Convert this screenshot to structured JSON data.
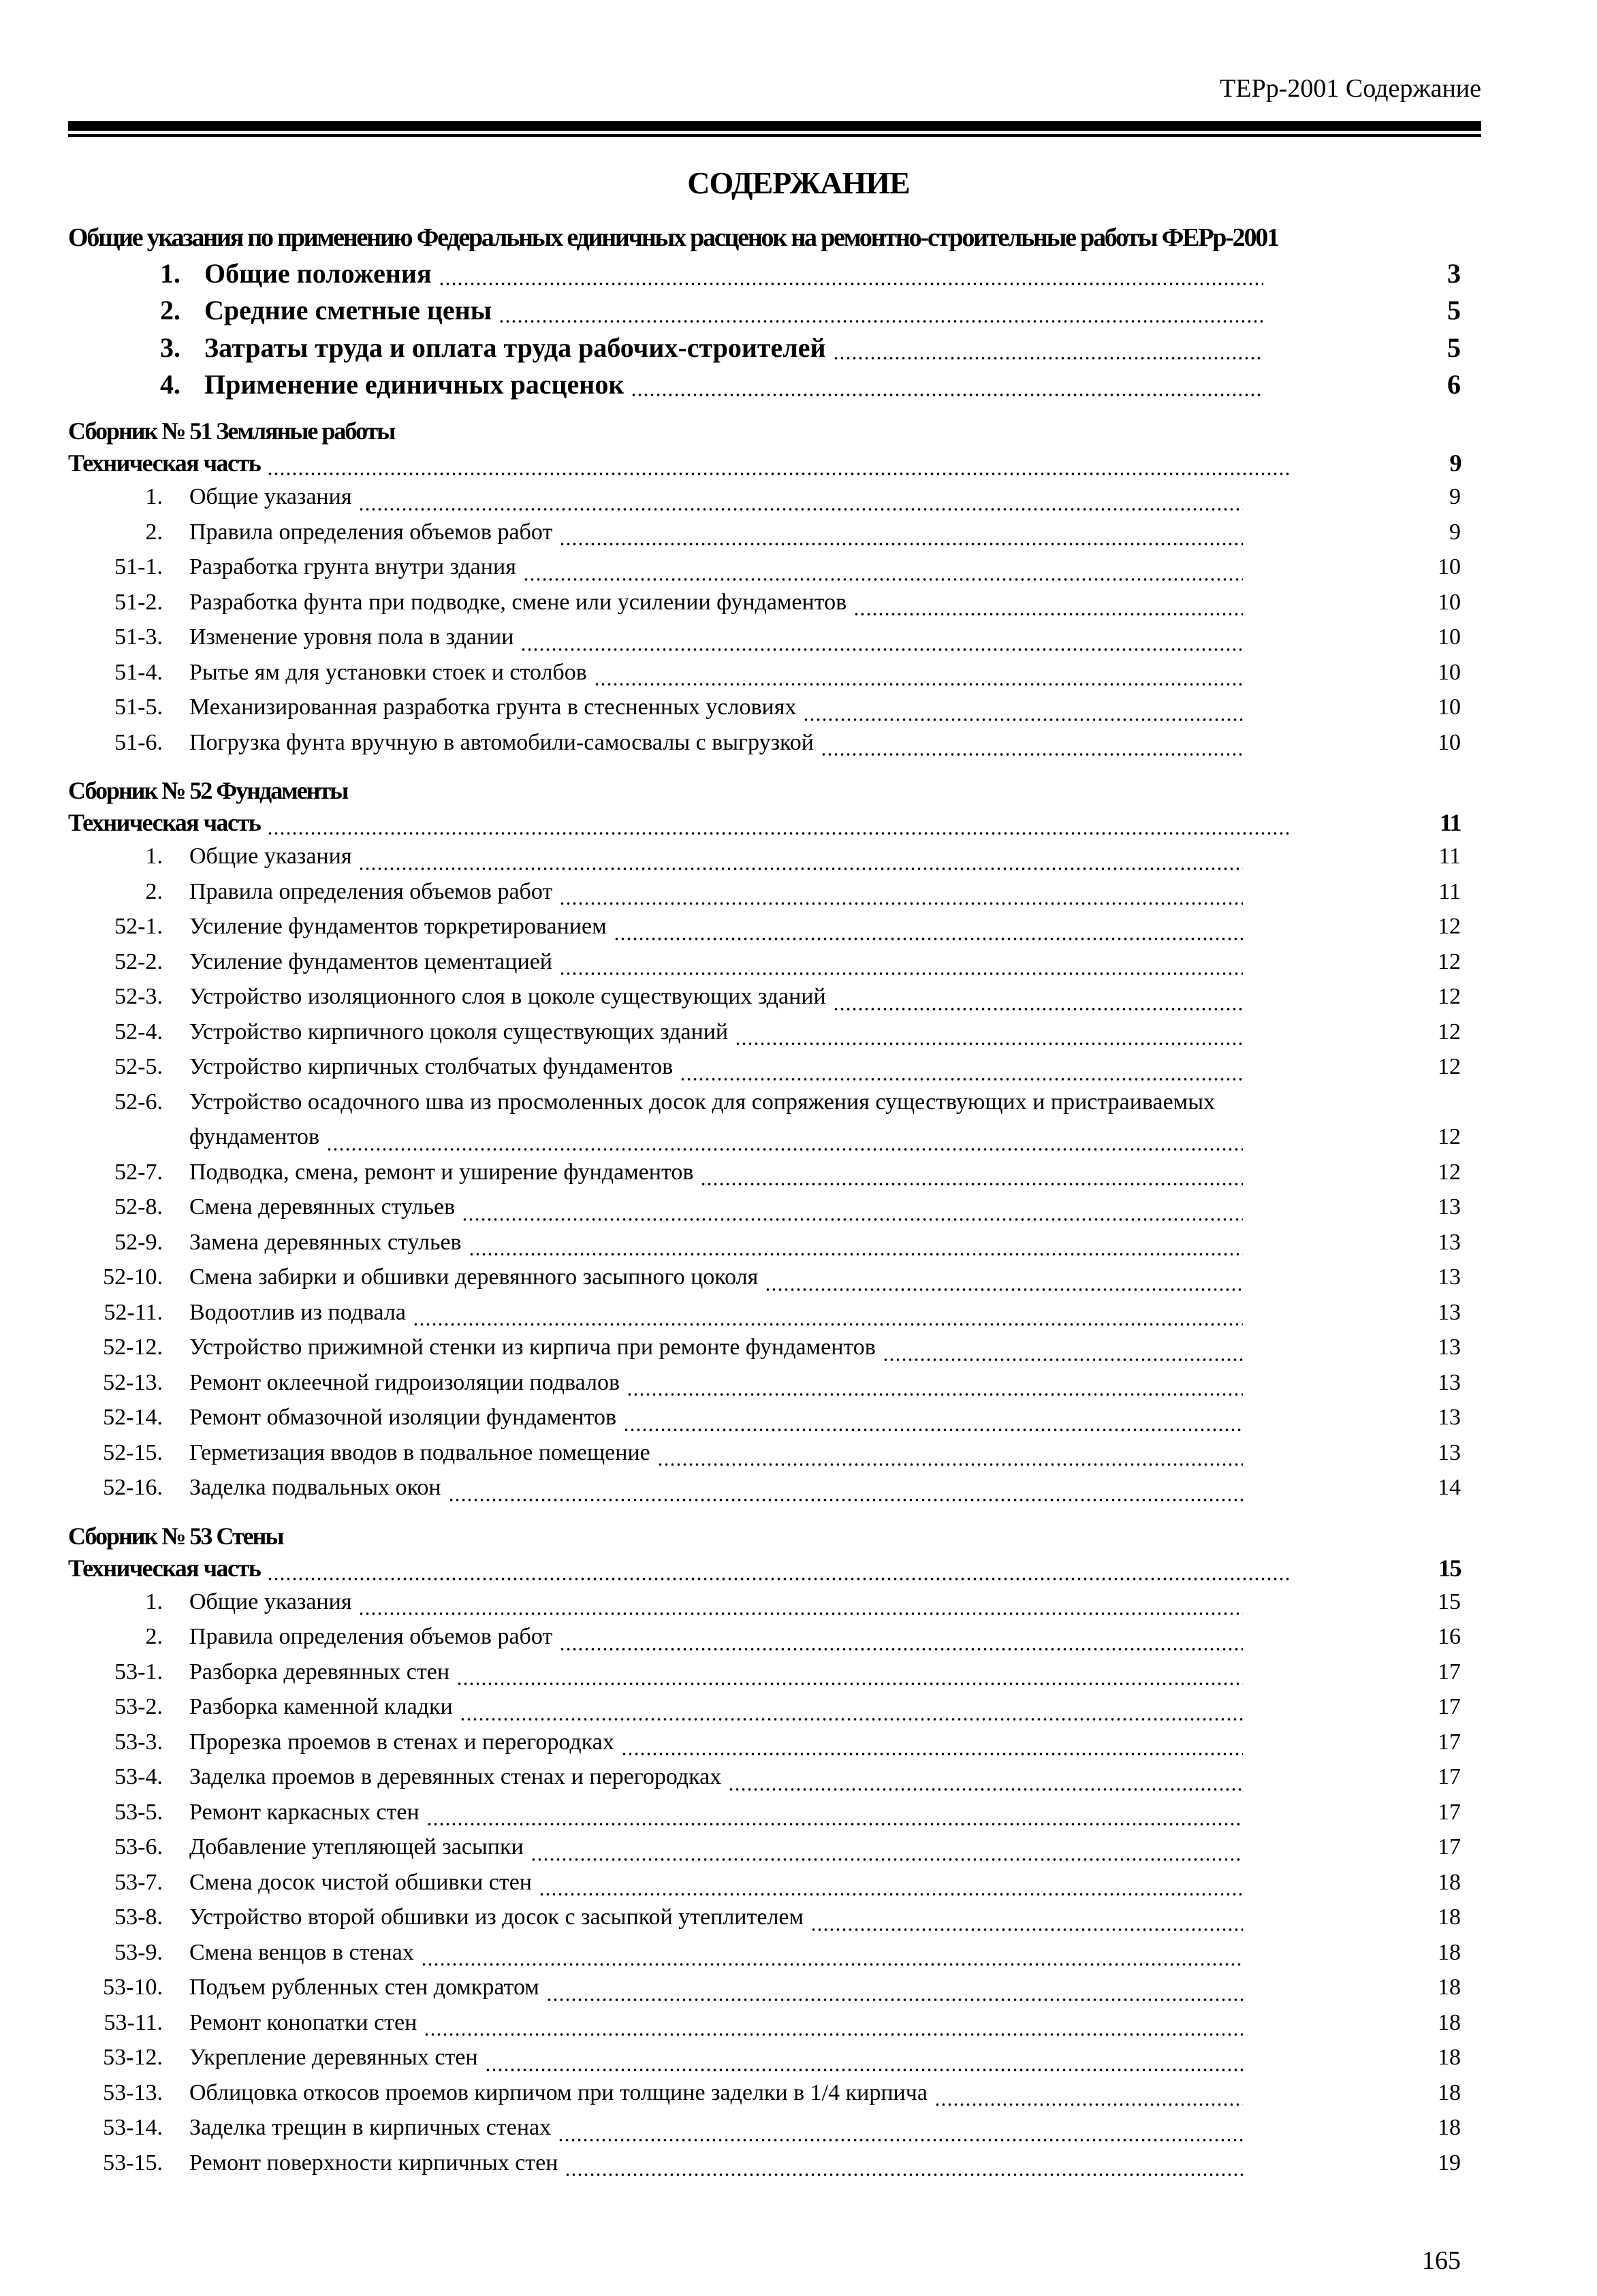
{
  "header": {
    "running_title": "ТЕРр-2001 Содержание"
  },
  "title": "СОДЕРЖАНИЕ",
  "general": {
    "heading": "Общие указания по применению Федеральных единичных расценок на ремонтно-строительные работы ФЕРр-2001",
    "items": [
      {
        "num": "1.",
        "text": "Общие положения",
        "page": "3"
      },
      {
        "num": "2.",
        "text": "Средние сметные цены",
        "page": "5"
      },
      {
        "num": "3.",
        "text": "Затраты труда и оплата труда рабочих-строителей",
        "page": "5"
      },
      {
        "num": "4.",
        "text": "Применение единичных расценок",
        "page": "6"
      }
    ]
  },
  "sections": [
    {
      "heading": "Сборник № 51 Земляные работы",
      "tech_label": "Техническая часть",
      "tech_page": "9",
      "items": [
        {
          "num": "1.",
          "text": "Общие указания",
          "page": "9"
        },
        {
          "num": "2.",
          "text": "Правила определения объемов работ",
          "page": "9"
        },
        {
          "num": "51-1.",
          "text": "Разработка грунта внутри здания",
          "page": "10"
        },
        {
          "num": "51-2.",
          "text": "Разработка фунта при подводке, смене или усилении фундаментов",
          "page": "10"
        },
        {
          "num": "51-3.",
          "text": "Изменение уровня пола в здании",
          "page": "10"
        },
        {
          "num": "51-4.",
          "text": "Рытье ям для установки стоек и столбов",
          "page": "10"
        },
        {
          "num": "51-5.",
          "text": "Механизированная разработка грунта в стесненных условиях",
          "page": "10"
        },
        {
          "num": "51-6.",
          "text": "Погрузка фунта вручную в автомобили-самосвалы с выгрузкой",
          "page": "10"
        }
      ]
    },
    {
      "heading": "Сборник № 52 Фундаменты",
      "tech_label": "Техническая часть",
      "tech_page": "11",
      "items": [
        {
          "num": "1.",
          "text": "Общие указания",
          "page": "11"
        },
        {
          "num": "2.",
          "text": "Правила определения объемов работ",
          "page": "11"
        },
        {
          "num": "52-1.",
          "text": "Усиление фундаментов торкретированием",
          "page": "12"
        },
        {
          "num": "52-2.",
          "text": "Усиление фундаментов цементацией",
          "page": "12"
        },
        {
          "num": "52-3.",
          "text": "Устройство изоляционного слоя в цоколе существующих зданий",
          "page": "12"
        },
        {
          "num": "52-4.",
          "text": "Устройство кирпичного цоколя существующих зданий",
          "page": "12"
        },
        {
          "num": "52-5.",
          "text": "Устройство кирпичных столбчатых фундаментов",
          "page": "12"
        },
        {
          "num": "52-6.",
          "text": "Устройство осадочного шва из просмоленных досок для сопряжения существующих и пристраиваемых",
          "cont": "фундаментов",
          "page": "12"
        },
        {
          "num": "52-7.",
          "text": "Подводка, смена, ремонт и уширение фундаментов",
          "page": "12"
        },
        {
          "num": "52-8.",
          "text": "Смена деревянных стульев",
          "page": "13"
        },
        {
          "num": "52-9.",
          "text": "Замена деревянных стульев",
          "page": "13"
        },
        {
          "num": "52-10.",
          "text": "Смена забирки и обшивки деревянного засыпного цоколя",
          "page": "13"
        },
        {
          "num": "52-11.",
          "text": "Водоотлив из подвала",
          "page": "13"
        },
        {
          "num": "52-12.",
          "text": "Устройство прижимной стенки из кирпича при ремонте фундаментов",
          "page": "13"
        },
        {
          "num": "52-13.",
          "text": "Ремонт оклеечной гидроизоляции подвалов",
          "page": "13"
        },
        {
          "num": "52-14.",
          "text": "Ремонт обмазочной изоляции фундаментов",
          "page": "13"
        },
        {
          "num": "52-15.",
          "text": "Герметизация вводов в подвальное помещение",
          "page": "13"
        },
        {
          "num": "52-16.",
          "text": "Заделка подвальных окон",
          "page": "14"
        }
      ]
    },
    {
      "heading": "Сборник № 53 Стены",
      "tech_label": "Техническая часть",
      "tech_page": "15",
      "items": [
        {
          "num": "1.",
          "text": "Общие указания",
          "page": "15"
        },
        {
          "num": "2.",
          "text": "Правила определения объемов работ",
          "page": "16"
        },
        {
          "num": "53-1.",
          "text": "Разборка деревянных стен",
          "page": "17"
        },
        {
          "num": "53-2.",
          "text": "Разборка каменной кладки",
          "page": "17"
        },
        {
          "num": "53-3.",
          "text": "Прорезка проемов в стенах и перегородках",
          "page": "17"
        },
        {
          "num": "53-4.",
          "text": "Заделка проемов в деревянных стенах и перегородках",
          "page": "17"
        },
        {
          "num": "53-5.",
          "text": "Ремонт каркасных стен",
          "page": "17"
        },
        {
          "num": "53-6.",
          "text": "Добавление утепляющей засыпки",
          "page": "17"
        },
        {
          "num": "53-7.",
          "text": "Смена досок чистой обшивки стен",
          "page": "18"
        },
        {
          "num": "53-8.",
          "text": "Устройство второй обшивки из досок с засыпкой утеплителем",
          "page": "18"
        },
        {
          "num": "53-9.",
          "text": "Смена венцов в стенах",
          "page": "18"
        },
        {
          "num": "53-10.",
          "text": "Подъем рубленных стен домкратом",
          "page": "18"
        },
        {
          "num": "53-11.",
          "text": "Ремонт конопатки стен",
          "page": "18"
        },
        {
          "num": "53-12.",
          "text": "Укрепление деревянных стен",
          "page": "18"
        },
        {
          "num": "53-13.",
          "text": "Облицовка откосов проемов кирпичом при толщине заделки в 1/4 кирпича",
          "page": "18"
        },
        {
          "num": "53-14.",
          "text": "Заделка трещин в кирпичных стенах",
          "page": "18"
        },
        {
          "num": "53-15.",
          "text": "Ремонт поверхности кирпичных стен",
          "page": "19"
        }
      ]
    }
  ],
  "footer": {
    "page_number": "165"
  }
}
